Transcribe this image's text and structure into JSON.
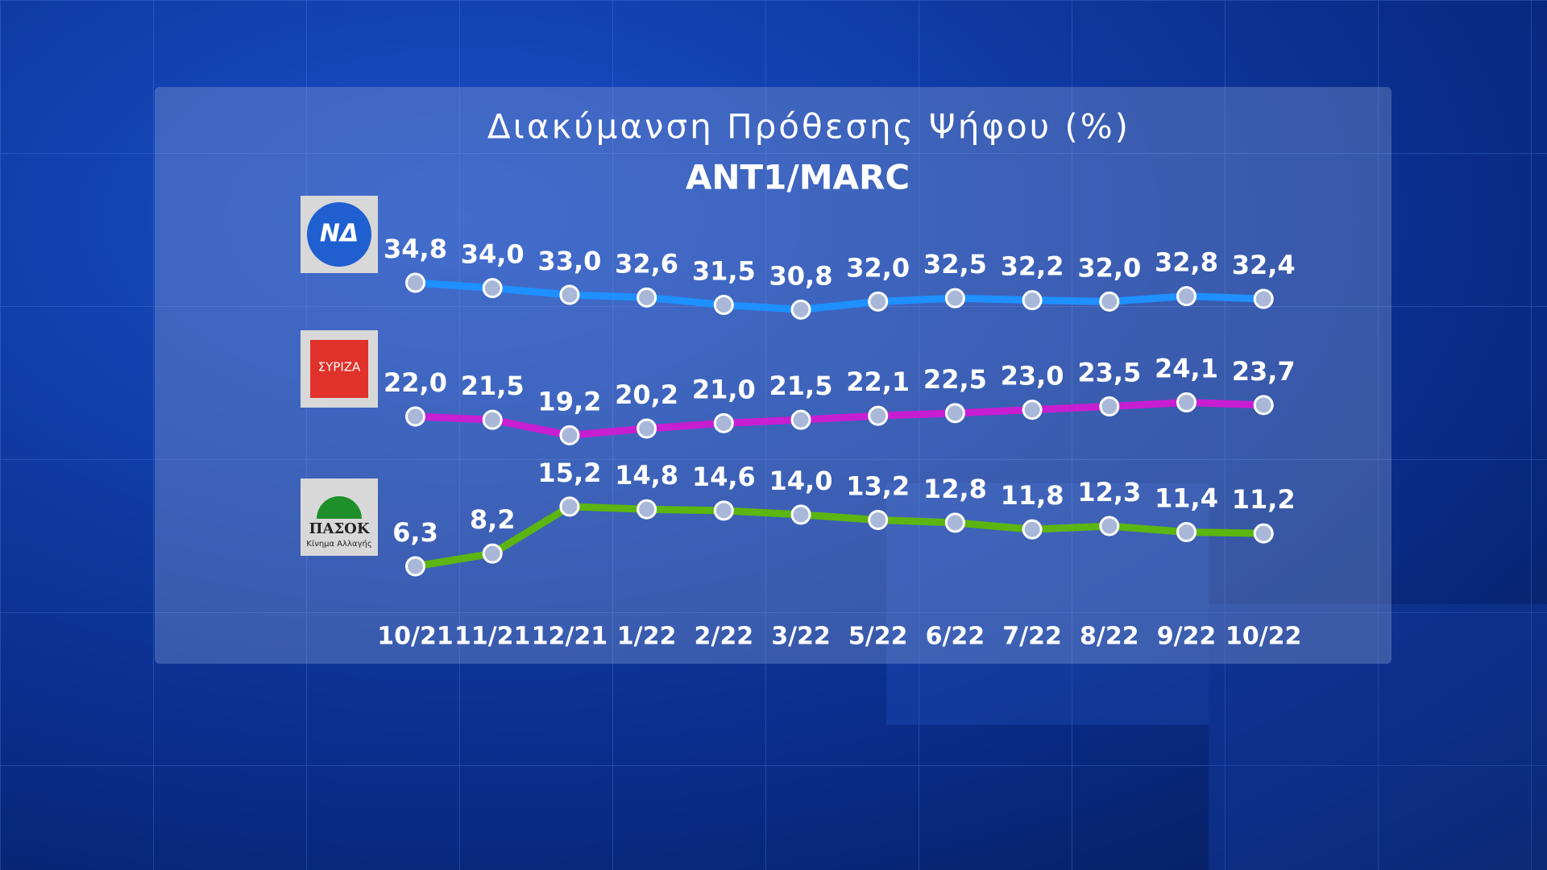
{
  "chart_data": {
    "type": "line",
    "title": "Διακύμανση Πρόθεσης Ψήφου (%)",
    "subtitle": "ANT1/MARC",
    "categories": [
      "10/21",
      "11/21",
      "12/21",
      "1/22",
      "2/22",
      "3/22",
      "5/22",
      "6/22",
      "7/22",
      "8/22",
      "9/22",
      "10/22"
    ],
    "series": [
      {
        "name": "ΝΔ",
        "color": "#1e90ff",
        "values": [
          34.8,
          34.0,
          33.0,
          32.6,
          31.5,
          30.8,
          32.0,
          32.5,
          32.2,
          32.0,
          32.8,
          32.4
        ],
        "value_labels": [
          "34,8",
          "34,0",
          "33,0",
          "32,6",
          "31,5",
          "30,8",
          "32,0",
          "32,5",
          "32,2",
          "32,0",
          "32,8",
          "32,4"
        ]
      },
      {
        "name": "ΣΥΡΙΖΑ",
        "color": "#c81ed2",
        "values": [
          22.0,
          21.5,
          19.2,
          20.2,
          21.0,
          21.5,
          22.1,
          22.5,
          23.0,
          23.5,
          24.1,
          23.7
        ],
        "value_labels": [
          "22,0",
          "21,5",
          "19,2",
          "20,2",
          "21,0",
          "21,5",
          "22,1",
          "22,5",
          "23,0",
          "23,5",
          "24,1",
          "23,7"
        ]
      },
      {
        "name": "ΠΑΣΟΚ",
        "subtitle": "Κίνημα Αλλαγής",
        "color": "#5cb510",
        "values": [
          6.3,
          8.2,
          15.2,
          14.8,
          14.6,
          14.0,
          13.2,
          12.8,
          11.8,
          12.3,
          11.4,
          11.2
        ],
        "value_labels": [
          "6,3",
          "8,2",
          "15,2",
          "14,8",
          "14,6",
          "14,0",
          "13,2",
          "12,8",
          "11,8",
          "12,3",
          "11,4",
          "11,2"
        ]
      }
    ]
  }
}
